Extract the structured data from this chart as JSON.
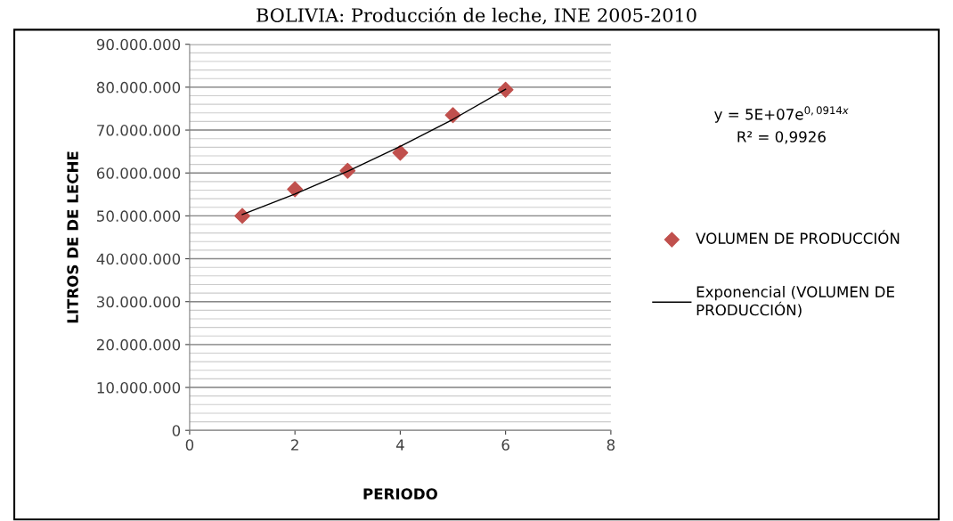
{
  "chart_data": {
    "type": "scatter",
    "title": "BOLIVIA: Producción de leche, INE 2005-2010",
    "xlabel": "PERIODO",
    "ylabel": "LITROS DE DE LECHE",
    "series": [
      {
        "name": "VOLUMEN DE PRODUCCIÓN",
        "color": "#c0504d",
        "marker": "diamond",
        "x": [
          1,
          2,
          3,
          4,
          5,
          6
        ],
        "values": [
          50000000,
          56200000,
          60500000,
          64700000,
          73500000,
          79400000
        ]
      },
      {
        "name": "Exponencial (VOLUMEN DE PRODUCCIÓN)",
        "type": "line",
        "color": "#000000",
        "marker": "none",
        "line_style": "solid",
        "x": [
          1,
          2,
          3,
          4,
          5,
          6
        ],
        "values": [
          50300000,
          55100000,
          60400000,
          66200000,
          72500000,
          79500000
        ]
      }
    ],
    "xlim": [
      0,
      8
    ],
    "xticks": [
      0,
      2,
      4,
      6,
      8
    ],
    "ylim": [
      0,
      90000000
    ],
    "yticks": [
      {
        "value": 0,
        "label": "0"
      },
      {
        "value": 10000000,
        "label": "10.000.000"
      },
      {
        "value": 20000000,
        "label": "20.000.000"
      },
      {
        "value": 30000000,
        "label": "30.000.000"
      },
      {
        "value": 40000000,
        "label": "40.000.000"
      },
      {
        "value": 50000000,
        "label": "50.000.000"
      },
      {
        "value": 60000000,
        "label": "60.000.000"
      },
      {
        "value": 70000000,
        "label": "70.000.000"
      },
      {
        "value": 80000000,
        "label": "80.000.000"
      },
      {
        "value": 90000000,
        "label": "90.000.000"
      }
    ],
    "grid": "y",
    "legend": "right",
    "annotations": [
      "y = 5E+07e$^{0,0914x}$",
      "R² = 0,9926"
    ]
  }
}
